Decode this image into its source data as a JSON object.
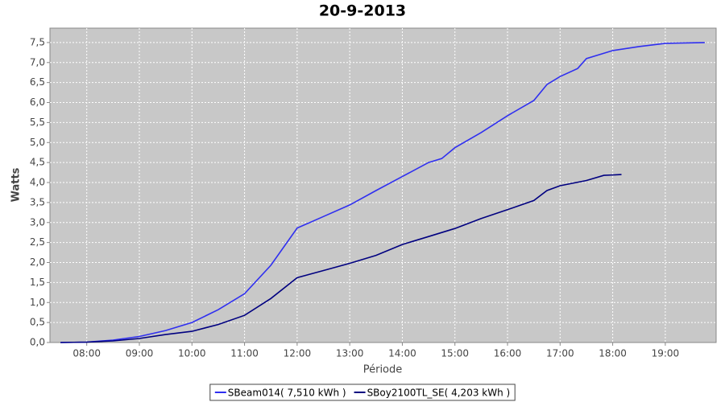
{
  "chart_data": {
    "type": "line",
    "title": "20-9-2013",
    "y_label": "Watts",
    "x_label": "Période",
    "xlim": [
      "07:18",
      "19:58"
    ],
    "xticks": [
      "08:00",
      "09:00",
      "10:00",
      "11:00",
      "12:00",
      "13:00",
      "14:00",
      "15:00",
      "16:00",
      "17:00",
      "18:00",
      "19:00"
    ],
    "ylim": [
      0,
      7.86
    ],
    "yticks": [
      {
        "value": 0,
        "label": "0,0"
      },
      {
        "value": 0.5,
        "label": "0,5"
      },
      {
        "value": 1,
        "label": "1,0"
      },
      {
        "value": 1.5,
        "label": "1,5"
      },
      {
        "value": 2,
        "label": "2,0"
      },
      {
        "value": 2.5,
        "label": "2,5"
      },
      {
        "value": 3,
        "label": "3,0"
      },
      {
        "value": 3.5,
        "label": "3,5"
      },
      {
        "value": 4,
        "label": "4,0"
      },
      {
        "value": 4.5,
        "label": "4,5"
      },
      {
        "value": 5,
        "label": "5,0"
      },
      {
        "value": 5.5,
        "label": "5,5"
      },
      {
        "value": 6,
        "label": "6,0"
      },
      {
        "value": 6.5,
        "label": "6,5"
      },
      {
        "value": 7,
        "label": "7,0"
      },
      {
        "value": 7.5,
        "label": "7,5"
      }
    ],
    "grid": true,
    "series": [
      {
        "name": "SBeam014( 7,510 kWh )",
        "color": "#2f2ff0",
        "x": [
          "07:30",
          "08:00",
          "08:30",
          "09:00",
          "09:30",
          "10:00",
          "10:30",
          "11:00",
          "11:30",
          "12:00",
          "12:30",
          "13:00",
          "13:30",
          "14:00",
          "14:30",
          "14:45",
          "15:00",
          "15:30",
          "16:00",
          "16:30",
          "16:45",
          "17:00",
          "17:20",
          "17:30",
          "18:00",
          "18:30",
          "19:00",
          "19:45"
        ],
        "values": [
          0,
          0.01,
          0.06,
          0.15,
          0.3,
          0.5,
          0.82,
          1.22,
          1.93,
          2.86,
          3.15,
          3.44,
          3.8,
          4.15,
          4.5,
          4.6,
          4.87,
          5.25,
          5.67,
          6.05,
          6.45,
          6.65,
          6.85,
          7.1,
          7.3,
          7.4,
          7.48,
          7.5
        ]
      },
      {
        "name": "SBoy2100TL_SE( 4,203 kWh )",
        "color": "#000080",
        "x": [
          "07:30",
          "08:00",
          "08:30",
          "09:00",
          "09:30",
          "10:00",
          "10:30",
          "11:00",
          "11:30",
          "12:00",
          "12:30",
          "13:00",
          "13:30",
          "14:00",
          "14:30",
          "15:00",
          "15:30",
          "16:00",
          "16:30",
          "16:45",
          "17:00",
          "17:30",
          "17:50",
          "18:10"
        ],
        "values": [
          0,
          0.01,
          0.04,
          0.1,
          0.2,
          0.28,
          0.45,
          0.68,
          1.1,
          1.62,
          1.8,
          1.98,
          2.18,
          2.45,
          2.65,
          2.85,
          3.1,
          3.32,
          3.55,
          3.8,
          3.92,
          4.05,
          4.18,
          4.2
        ]
      }
    ]
  }
}
